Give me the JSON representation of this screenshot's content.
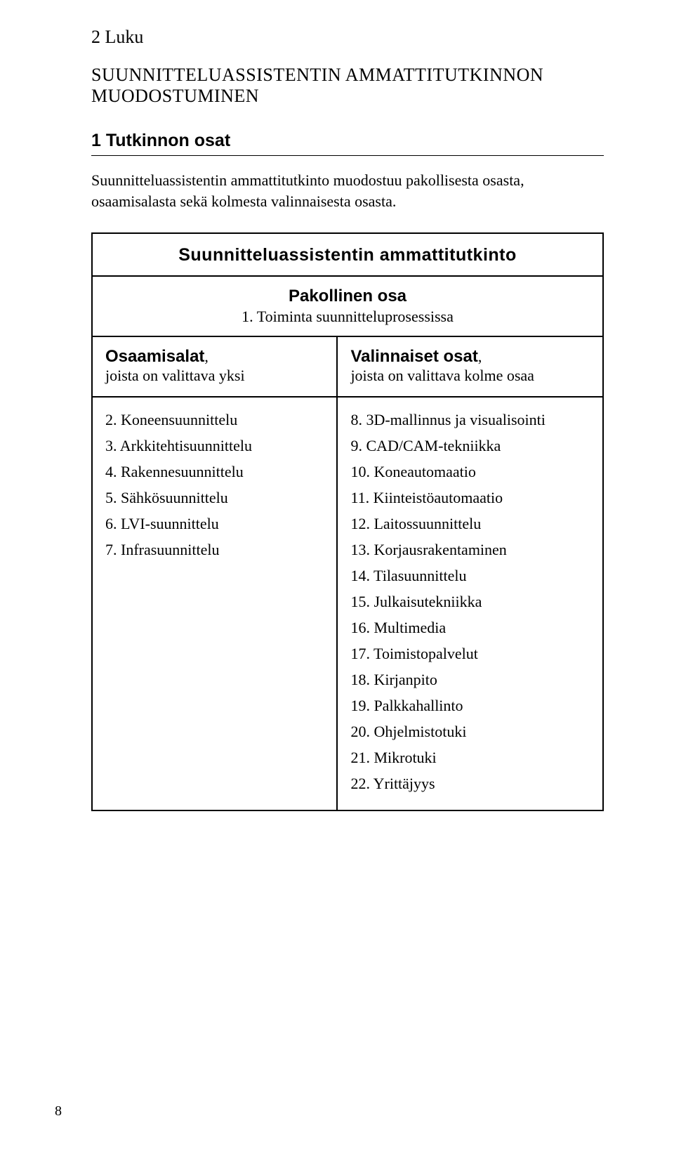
{
  "chapter": "2 Luku",
  "chapter_title": "SUUNNITTELUASSISTENTIN AMMATTITUTKINNON MUODOSTUMINEN",
  "section": "1 Tutkinnon osat",
  "intro": "Suunnitteluassistentin ammattitutkinto muodostuu pakollisesta osasta, osaamisalasta sekä kolmesta valinnaisesta osasta.",
  "table": {
    "header": "Suunnitteluassistentin ammattitutkinto",
    "mandatory_label": "Pakollinen osa",
    "mandatory_item": "1. Toiminta suunnitteluprosessissa",
    "left_header_title": "Osaamisalat",
    "left_header_sub": "joista on valittava yksi",
    "right_header_title": "Valinnaiset osat",
    "right_header_sub": "joista on valittava kolme osaa",
    "left_items": [
      "2. Koneensuunnittelu",
      "3. Arkkitehtisuunnittelu",
      "4. Rakennesuunnittelu",
      "5. Sähkösuunnittelu",
      "6. LVI-suunnittelu",
      "7. Infrasuunnittelu"
    ],
    "right_items": [
      "8. 3D-mallinnus ja visualisointi",
      "9. CAD/CAM-tekniikka",
      "10. Koneautomaatio",
      "11. Kiinteistöautomaatio",
      "12. Laitossuunnittelu",
      "13. Korjausrakentaminen",
      "14. Tilasuunnittelu",
      "15. Julkaisutekniikka",
      "16. Multimedia",
      "17. Toimistopalvelut",
      "18. Kirjanpito",
      "19. Palkkahallinto",
      "20. Ohjelmistotuki",
      "21. Mikrotuki",
      "22. Yrittäjyys"
    ]
  },
  "page_number": "8"
}
